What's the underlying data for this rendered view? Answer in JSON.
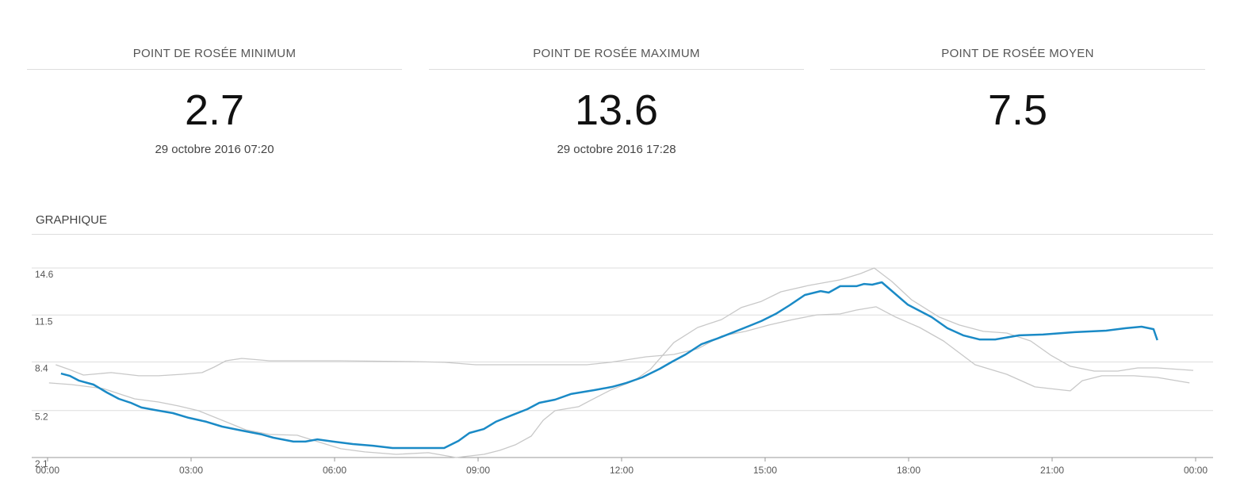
{
  "stats": [
    {
      "title": "POINT DE ROSÉE MINIMUM",
      "value": "2.7",
      "date": "29 octobre 2016 07:20"
    },
    {
      "title": "POINT DE ROSÉE MAXIMUM",
      "value": "13.6",
      "date": "29 octobre 2016 17:28"
    },
    {
      "title": "POINT DE ROSÉE MOYEN",
      "value": "7.5"
    }
  ],
  "chart_data": {
    "type": "line",
    "title": "GRAPHIQUE",
    "xlim": [
      0,
      24
    ],
    "xticks": [
      {
        "value": 0,
        "label": "00:00"
      },
      {
        "value": 3,
        "label": "03:00"
      },
      {
        "value": 6,
        "label": "06:00"
      },
      {
        "value": 9,
        "label": "09:00"
      },
      {
        "value": 12,
        "label": "12:00"
      },
      {
        "value": 15,
        "label": "15:00"
      },
      {
        "value": 18,
        "label": "18:00"
      },
      {
        "value": 21,
        "label": "21:00"
      },
      {
        "value": 24,
        "label": "00:00"
      }
    ],
    "ylim": [
      2.1,
      14.6
    ],
    "yticks": [
      14.6,
      11.5,
      8.4,
      5.2,
      2.1
    ],
    "grid": true,
    "series": [
      {
        "color": "#c8c8c8",
        "x": [
          0.17,
          0.46,
          0.75,
          1.33,
          1.91,
          2.32,
          2.82,
          3.23,
          3.48,
          3.73,
          4.06,
          4.64,
          6.13,
          7.62,
          8.29,
          8.95,
          9.78,
          10.28,
          11.27,
          11.77,
          12.51,
          13.09,
          13.59,
          14.09,
          14.59,
          15.08,
          15.58,
          16.08,
          16.57,
          16.91,
          17.32,
          17.73,
          18.23,
          18.73,
          19.39,
          20.05,
          20.64,
          21.22,
          21.38,
          21.63,
          22.04,
          22.71,
          23.2,
          23.87
        ],
        "values": [
          8.22,
          7.9,
          7.54,
          7.7,
          7.49,
          7.49,
          7.59,
          7.7,
          8.06,
          8.48,
          8.64,
          8.48,
          8.48,
          8.43,
          8.38,
          8.22,
          8.22,
          8.22,
          8.22,
          8.38,
          8.74,
          8.9,
          9.27,
          10.11,
          10.42,
          10.84,
          11.2,
          11.51,
          11.57,
          11.83,
          12.04,
          11.36,
          10.68,
          9.79,
          8.22,
          7.59,
          6.76,
          6.55,
          6.5,
          7.17,
          7.49,
          7.49,
          7.38,
          7.02
        ]
      },
      {
        "color": "#c8c8c8",
        "x": [
          0.03,
          0.5,
          1.16,
          1.82,
          2.32,
          2.74,
          3.15,
          3.65,
          4.14,
          4.64,
          5.22,
          5.64,
          6.13,
          6.63,
          7.29,
          7.96,
          8.54,
          9.12,
          9.45,
          9.78,
          10.11,
          10.36,
          10.61,
          11.1,
          11.35,
          11.77,
          12.26,
          12.6,
          13.09,
          13.59,
          14.09,
          14.5,
          14.92,
          15.33,
          15.91,
          16.57,
          16.99,
          17.28,
          17.65,
          18.06,
          18.64,
          19.06,
          19.56,
          20.05,
          20.55,
          20.97,
          21.38,
          21.88,
          22.37,
          22.79,
          23.2,
          23.95
        ],
        "values": [
          7.02,
          6.91,
          6.65,
          5.97,
          5.76,
          5.5,
          5.19,
          4.56,
          3.93,
          3.62,
          3.57,
          3.15,
          2.68,
          2.47,
          2.31,
          2.42,
          2.1,
          2.31,
          2.57,
          2.94,
          3.51,
          4.56,
          5.19,
          5.45,
          5.87,
          6.55,
          7.17,
          7.91,
          9.68,
          10.68,
          11.2,
          11.99,
          12.4,
          13.03,
          13.45,
          13.82,
          14.23,
          14.6,
          13.71,
          12.51,
          11.36,
          10.84,
          10.42,
          10.31,
          9.79,
          8.85,
          8.12,
          7.8,
          7.8,
          8.01,
          8.01,
          7.85
        ]
      },
      {
        "color": "#1a8ac6",
        "x": [
          0.28,
          0.46,
          0.66,
          0.96,
          1.24,
          1.49,
          1.74,
          1.96,
          2.24,
          2.62,
          2.95,
          3.32,
          3.65,
          4.06,
          4.48,
          4.72,
          5.14,
          5.39,
          5.64,
          5.97,
          6.38,
          6.8,
          7.21,
          7.79,
          8.29,
          8.59,
          8.82,
          9.12,
          9.37,
          9.7,
          10.03,
          10.28,
          10.61,
          10.94,
          11.44,
          11.8,
          12.1,
          12.43,
          12.8,
          13.06,
          13.34,
          13.67,
          14.0,
          14.34,
          14.67,
          14.92,
          15.22,
          15.51,
          15.83,
          16.16,
          16.33,
          16.57,
          16.91,
          17.07,
          17.24,
          17.44,
          17.98,
          18.48,
          18.81,
          19.14,
          19.48,
          19.81,
          20.31,
          20.81,
          21.47,
          22.13,
          22.54,
          22.87,
          23.12,
          23.2
        ],
        "values": [
          7.64,
          7.49,
          7.17,
          6.91,
          6.39,
          5.97,
          5.71,
          5.4,
          5.24,
          5.03,
          4.72,
          4.46,
          4.14,
          3.88,
          3.62,
          3.41,
          3.15,
          3.15,
          3.3,
          3.15,
          2.99,
          2.88,
          2.73,
          2.73,
          2.73,
          3.2,
          3.72,
          3.98,
          4.46,
          4.88,
          5.29,
          5.71,
          5.92,
          6.29,
          6.55,
          6.76,
          7.02,
          7.38,
          7.96,
          8.43,
          8.9,
          9.58,
          9.95,
          10.37,
          10.78,
          11.1,
          11.57,
          12.14,
          12.82,
          13.08,
          12.98,
          13.4,
          13.4,
          13.55,
          13.5,
          13.66,
          12.19,
          11.36,
          10.63,
          10.16,
          9.89,
          9.89,
          10.16,
          10.21,
          10.37,
          10.47,
          10.63,
          10.73,
          10.57,
          9.84
        ]
      }
    ]
  }
}
